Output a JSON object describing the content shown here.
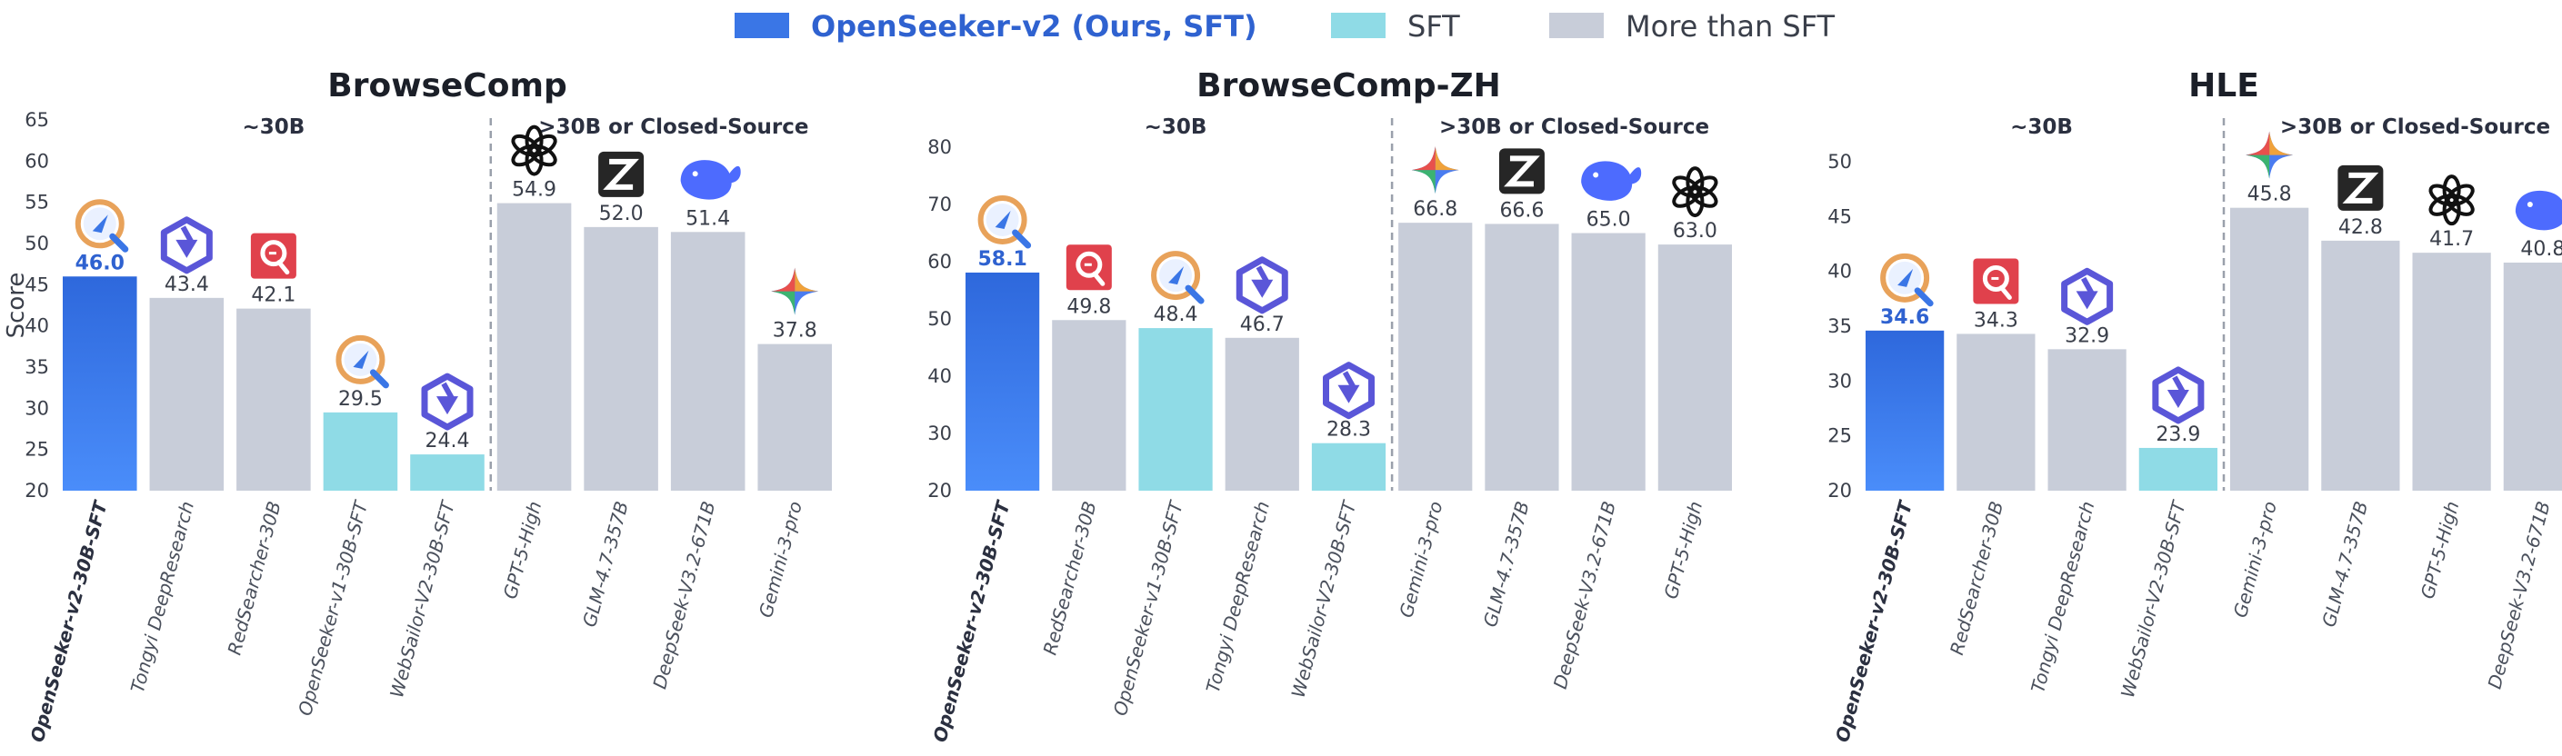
{
  "legend": [
    {
      "label": "OpenSeeker-v2 (Ours, SFT)",
      "kind": "ours",
      "color": "#3a76e6"
    },
    {
      "label": "SFT",
      "kind": "sft",
      "color": "#8fdbe6"
    },
    {
      "label": "More than SFT",
      "kind": "more",
      "color": "#c8cdd9"
    }
  ],
  "colors": {
    "ours": "#3a76e6",
    "sft": "#8fdbe6",
    "more": "#c8cdd9",
    "ours_text": "#2f62d0",
    "text": "#3a3f4a"
  },
  "chart_data": [
    {
      "type": "bar",
      "title": "BrowseComp",
      "ylabel": "Score",
      "ylim": [
        20,
        65
      ],
      "yticks": [
        "20",
        "25",
        "30",
        "35",
        "40",
        "45",
        "50",
        "55",
        "60",
        "65"
      ],
      "group_labels": [
        "~30B",
        ">30B or Closed-Source"
      ],
      "split_after": 5,
      "categories": [
        "OpenSeeker-v2-30B-SFT",
        "Tongyi DeepResearch",
        "RedSearcher-30B",
        "OpenSeeker-v1-30B-SFT",
        "WebSailor-V2-30B-SFT",
        "GPT-5-High",
        "GLM-4.7-357B",
        "DeepSeek-V3.2-671B",
        "Gemini-3-pro"
      ],
      "values": [
        46.0,
        43.4,
        42.1,
        29.5,
        24.4,
        54.9,
        52.0,
        51.4,
        37.8
      ],
      "value_labels": [
        "46.0",
        "43.4",
        "42.1",
        "29.5",
        "24.4",
        "54.9",
        "52.0",
        "51.4",
        "37.8"
      ],
      "kinds": [
        "ours",
        "more",
        "more",
        "sft",
        "sft",
        "more",
        "more",
        "more",
        "more"
      ],
      "icons": [
        "openseeker-icon",
        "tongyi-icon",
        "redsearcher-icon",
        "openseeker-icon",
        "tongyi-icon",
        "openai-icon",
        "zhipu-icon",
        "deepseek-icon",
        "gemini-icon"
      ]
    },
    {
      "type": "bar",
      "title": "BrowseComp-ZH",
      "ylabel": "",
      "ylim": [
        20,
        80
      ],
      "yticks": [
        "20",
        "30",
        "40",
        "50",
        "60",
        "70",
        "80"
      ],
      "group_labels": [
        "~30B",
        ">30B or Closed-Source"
      ],
      "split_after": 5,
      "categories": [
        "OpenSeeker-v2-30B-SFT",
        "RedSearcher-30B",
        "OpenSeeker-v1-30B-SFT",
        "Tongyi DeepResearch",
        "WebSailor-V2-30B-SFT",
        "Gemini-3-pro",
        "GLM-4.7-357B",
        "DeepSeek-V3.2-671B",
        "GPT-5-High"
      ],
      "values": [
        58.1,
        49.8,
        48.4,
        46.7,
        28.3,
        66.8,
        66.6,
        65.0,
        63.0
      ],
      "value_labels": [
        "58.1",
        "49.8",
        "48.4",
        "46.7",
        "28.3",
        "66.8",
        "66.6",
        "65.0",
        "63.0"
      ],
      "kinds": [
        "ours",
        "more",
        "sft",
        "more",
        "sft",
        "more",
        "more",
        "more",
        "more"
      ],
      "icons": [
        "openseeker-icon",
        "redsearcher-icon",
        "openseeker-icon",
        "tongyi-icon",
        "tongyi-icon",
        "gemini-icon",
        "zhipu-icon",
        "deepseek-icon",
        "openai-icon"
      ]
    },
    {
      "type": "bar",
      "title": "HLE",
      "ylabel": "",
      "ylim": [
        20,
        52
      ],
      "yticks": [
        "20",
        "25",
        "30",
        "35",
        "40",
        "45",
        "50"
      ],
      "group_labels": [
        "~30B",
        ">30B or Closed-Source"
      ],
      "split_after": 4,
      "categories": [
        "OpenSeeker-v2-30B-SFT",
        "RedSearcher-30B",
        "Tongyi DeepResearch",
        "WebSailor-V2-30B-SFT",
        "Gemini-3-pro",
        "GLM-4.7-357B",
        "GPT-5-High",
        "DeepSeek-V3.2-671B"
      ],
      "values": [
        34.6,
        34.3,
        32.9,
        23.9,
        45.8,
        42.8,
        41.7,
        40.8
      ],
      "value_labels": [
        "34.6",
        "34.3",
        "32.9",
        "23.9",
        "45.8",
        "42.8",
        "41.7",
        "40.8"
      ],
      "kinds": [
        "ours",
        "more",
        "more",
        "sft",
        "more",
        "more",
        "more",
        "more"
      ],
      "icons": [
        "openseeker-icon",
        "redsearcher-icon",
        "tongyi-icon",
        "tongyi-icon",
        "gemini-icon",
        "zhipu-icon",
        "openai-icon",
        "deepseek-icon"
      ]
    }
  ]
}
